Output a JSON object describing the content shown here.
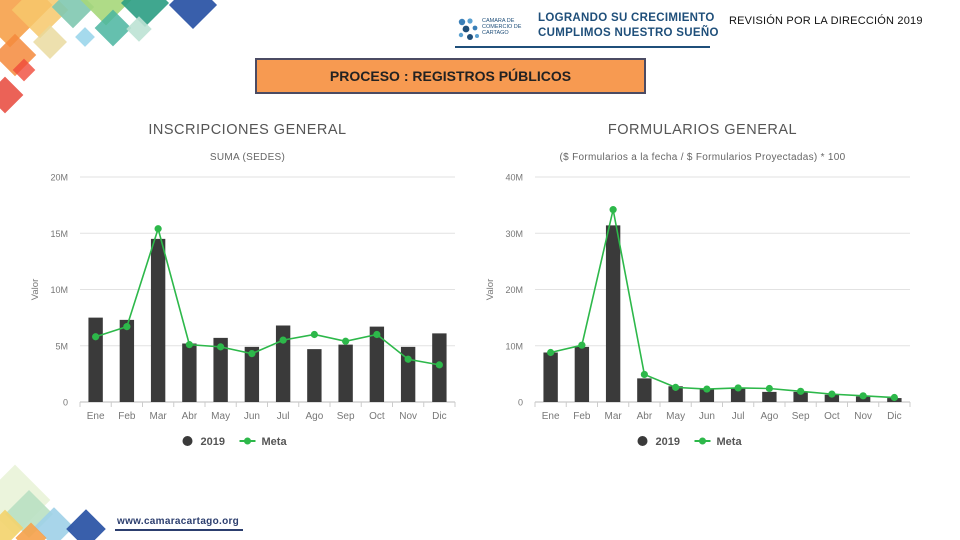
{
  "header": {
    "review_title": "REVISIÓN POR LA DIRECCIÓN 2019",
    "slogan_line1": "LOGRANDO SU CRECIMIENTO",
    "slogan_line2": "CUMPLIMOS NUESTRO SUEÑO",
    "camara_name": "CAMARA DE COMERCIO DE CARTAGO"
  },
  "process_label": "PROCESO : REGISTROS PÚBLICOS",
  "footer": {
    "url": "www.camaracartago.org"
  },
  "colors": {
    "bar": "#3a3a3a",
    "meta": "#2db84a",
    "process_box": "#f79a51",
    "brand": "#1f4f7a"
  },
  "chart_data": [
    {
      "type": "bar",
      "title": "INSCRIPCIONES GENERAL",
      "subtitle": "SUMA (SEDES)",
      "ylabel": "Valor",
      "xlabel": "",
      "ylim": [
        0,
        20
      ],
      "yticks": [
        "0",
        "5M",
        "10M",
        "15M",
        "20M"
      ],
      "categories": [
        "Ene",
        "Feb",
        "Mar",
        "Abr",
        "May",
        "Jun",
        "Jul",
        "Ago",
        "Sep",
        "Oct",
        "Nov",
        "Dic"
      ],
      "series": [
        {
          "name": "2019",
          "type": "bar",
          "values": [
            7.5,
            7.3,
            14.5,
            5.2,
            5.7,
            4.9,
            6.8,
            4.7,
            5.1,
            6.7,
            4.9,
            6.1
          ]
        },
        {
          "name": "Meta",
          "type": "line",
          "values": [
            5.8,
            6.7,
            15.4,
            5.1,
            4.9,
            4.3,
            5.5,
            6.0,
            5.4,
            6.0,
            3.8,
            3.3
          ]
        }
      ],
      "legend": "bottom",
      "grid": true
    },
    {
      "type": "bar",
      "title": "FORMULARIOS GENERAL",
      "subtitle": "($ Formularios a la fecha / $ Formularios Proyectadas) * 100",
      "ylabel": "Valor",
      "xlabel": "",
      "ylim": [
        0,
        40
      ],
      "yticks": [
        "0",
        "10M",
        "20M",
        "30M",
        "40M"
      ],
      "categories": [
        "Ene",
        "Feb",
        "Mar",
        "Abr",
        "May",
        "Jun",
        "Jul",
        "Ago",
        "Sep",
        "Oct",
        "Nov",
        "Dic"
      ],
      "series": [
        {
          "name": "2019",
          "type": "bar",
          "values": [
            8.8,
            9.8,
            31.4,
            4.2,
            2.8,
            2.3,
            2.4,
            1.8,
            1.8,
            1.3,
            1.0,
            0.7
          ]
        },
        {
          "name": "Meta",
          "type": "line",
          "values": [
            8.8,
            10.1,
            34.2,
            4.9,
            2.6,
            2.3,
            2.5,
            2.4,
            1.9,
            1.4,
            1.1,
            0.8
          ]
        }
      ],
      "legend": "bottom",
      "grid": true
    }
  ]
}
